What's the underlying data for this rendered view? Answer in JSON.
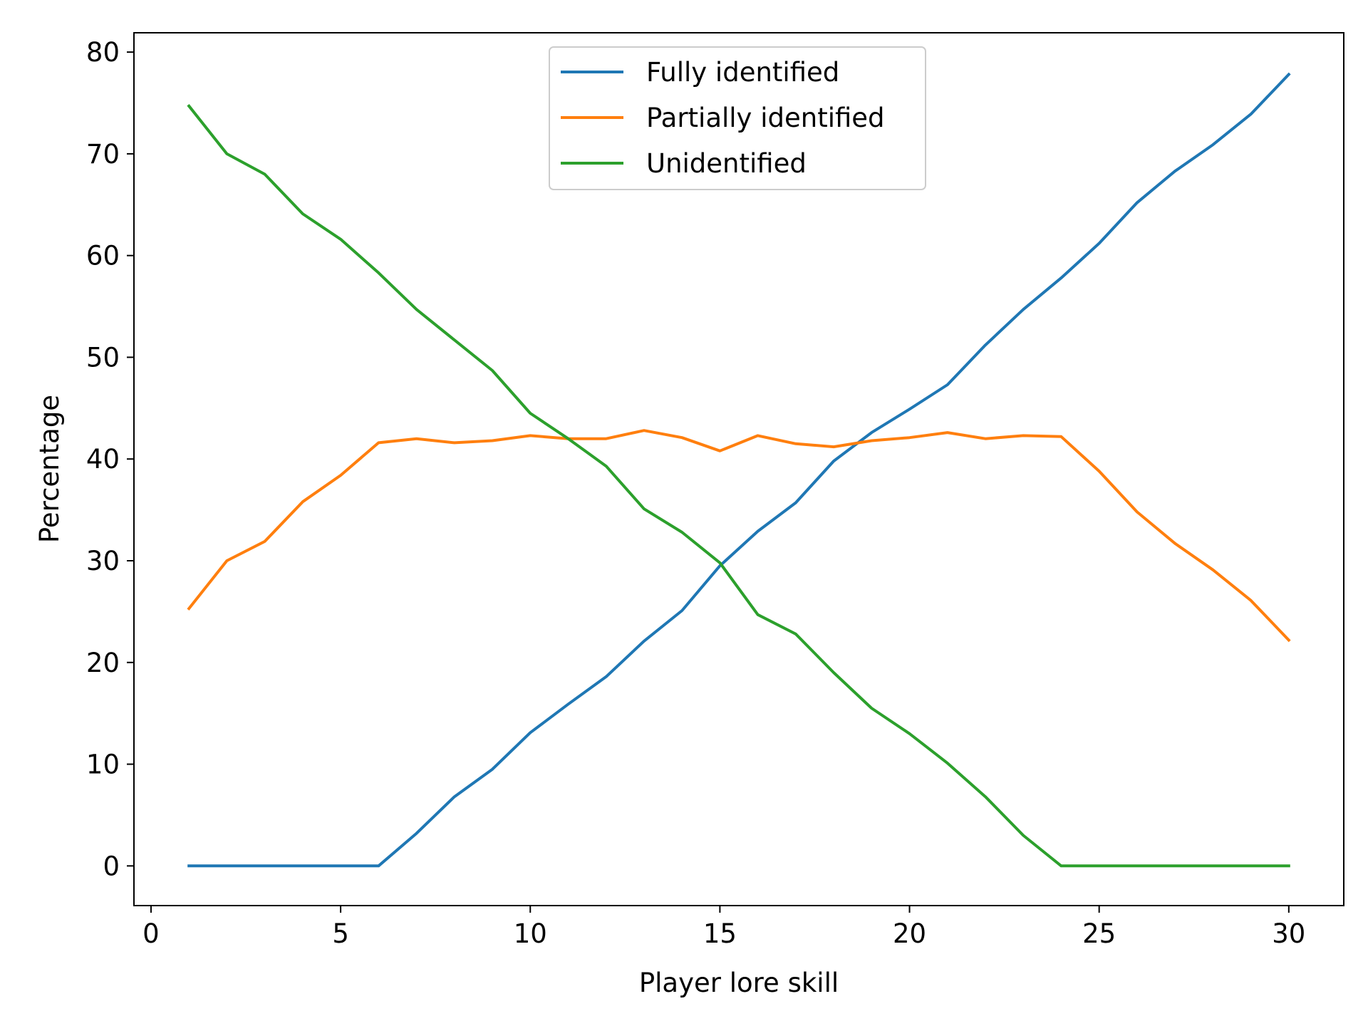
{
  "chart_data": {
    "type": "line",
    "title": "",
    "xlabel": "Player lore skill",
    "ylabel": "Percentage",
    "xlim": [
      -0.45,
      31.45
    ],
    "ylim": [
      -3.9,
      81.9
    ],
    "xticks": [
      0,
      5,
      10,
      15,
      20,
      25,
      30
    ],
    "yticks": [
      0,
      10,
      20,
      30,
      40,
      50,
      60,
      70,
      80
    ],
    "grid": false,
    "legend_position": "upper center",
    "x": [
      1,
      2,
      3,
      4,
      5,
      6,
      7,
      8,
      9,
      10,
      11,
      12,
      13,
      14,
      15,
      16,
      17,
      18,
      19,
      20,
      21,
      22,
      23,
      24,
      25,
      26,
      27,
      28,
      29,
      30
    ],
    "series": [
      {
        "name": "Fully identified",
        "color": "#1f77b4",
        "values": [
          0,
          0,
          0,
          0,
          0,
          0,
          3.2,
          6.8,
          9.5,
          13.1,
          15.9,
          18.6,
          22.1,
          25.1,
          29.5,
          32.9,
          35.7,
          39.8,
          42.6,
          44.9,
          47.3,
          51.2,
          54.7,
          57.8,
          61.2,
          65.2,
          68.3,
          70.9,
          73.9,
          77.8
        ]
      },
      {
        "name": "Partially identified",
        "color": "#ff7f0e",
        "values": [
          25.3,
          30.0,
          31.9,
          35.8,
          38.4,
          41.6,
          42.0,
          41.6,
          41.8,
          42.3,
          42.0,
          42.0,
          42.8,
          42.1,
          40.8,
          42.3,
          41.5,
          41.2,
          41.8,
          42.1,
          42.6,
          42.0,
          42.3,
          42.2,
          38.8,
          34.8,
          31.7,
          29.1,
          26.1,
          22.2
        ]
      },
      {
        "name": "Unidentified",
        "color": "#2ca02c",
        "values": [
          74.7,
          70.0,
          68.0,
          64.1,
          61.6,
          58.3,
          54.7,
          51.7,
          48.7,
          44.5,
          42.0,
          39.3,
          35.1,
          32.8,
          29.8,
          24.7,
          22.8,
          19.0,
          15.5,
          13.0,
          10.1,
          6.8,
          3.0,
          0,
          0,
          0,
          0,
          0,
          0,
          0
        ]
      }
    ]
  }
}
